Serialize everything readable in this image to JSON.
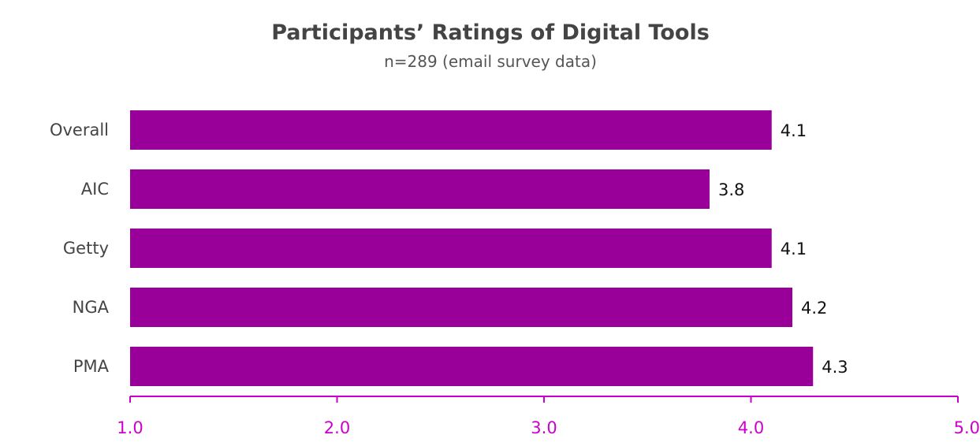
{
  "chart_data": {
    "type": "bar",
    "orientation": "horizontal",
    "title": "Participants’ Ratings of Digital Tools",
    "subtitle": "n=289 (email survey data)",
    "categories": [
      "Overall",
      "AIC",
      "Getty",
      "NGA",
      "PMA"
    ],
    "values": [
      4.1,
      3.8,
      4.1,
      4.2,
      4.3
    ],
    "value_labels": [
      "4.1",
      "3.8",
      "4.1",
      "4.2",
      "4.3"
    ],
    "xlim": [
      1.0,
      5.0
    ],
    "xticks": [
      1.0,
      2.0,
      3.0,
      4.0,
      5.0
    ],
    "xtick_labels": [
      "1.0",
      "2.0",
      "3.0",
      "4.0",
      "5.0"
    ],
    "xlabel": "",
    "ylabel": "",
    "grid": false,
    "legend": "none"
  },
  "colors": {
    "bar": "#990099",
    "axis": "#cc00cc",
    "tick_label": "#cc00cc"
  }
}
